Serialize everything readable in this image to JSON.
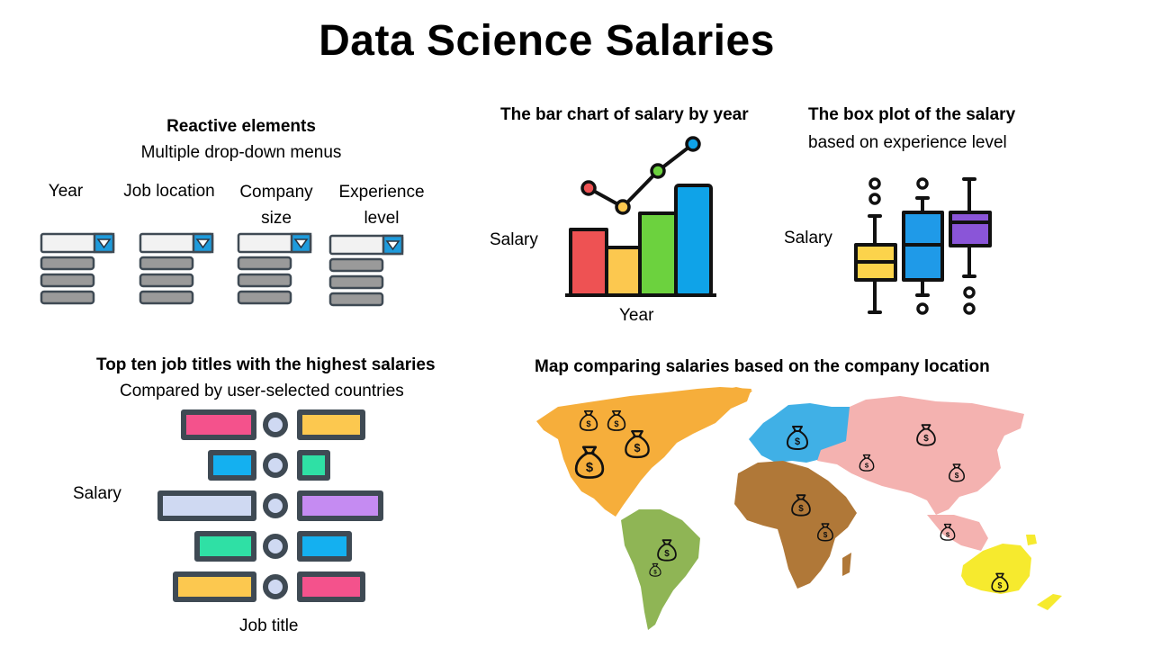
{
  "title": "Data Science Salaries",
  "reactive": {
    "heading": "Reactive elements",
    "subheading": "Multiple drop-down menus",
    "menus": [
      {
        "label_line1": "Year",
        "label_line2": ""
      },
      {
        "label_line1": "Job location",
        "label_line2": ""
      },
      {
        "label_line1": "Company",
        "label_line2": "size"
      },
      {
        "label_line1": "Experience",
        "label_line2": "level"
      }
    ]
  },
  "bar_chart": {
    "heading": "The bar chart of salary by year",
    "ylabel": "Salary",
    "xlabel": "Year"
  },
  "box_plot": {
    "heading": "The box plot of the salary",
    "subheading": "based on experience level",
    "ylabel": "Salary"
  },
  "top_ten": {
    "heading": "Top ten job titles with the highest salaries",
    "subheading": "Compared by user-selected countries",
    "ylabel": "Salary",
    "xlabel": "Job title"
  },
  "map": {
    "heading": "Map comparing salaries based on the company location"
  },
  "colors": {
    "dropdown_accent": "#1e9bdc",
    "red": "#ee5253",
    "yellow": "#fcc84f",
    "green": "#6cd23e",
    "blue": "#0fa3e8",
    "purple": "#8a55d8",
    "north_america": "#f6ae3b",
    "south_america": "#8fb555",
    "europe": "#40b0e6",
    "africa": "#b07838",
    "asia": "#f4b2b0",
    "australia": "#f6ea2e"
  },
  "icons": [
    "dropdown-arrow-icon",
    "money-bag-icon"
  ]
}
